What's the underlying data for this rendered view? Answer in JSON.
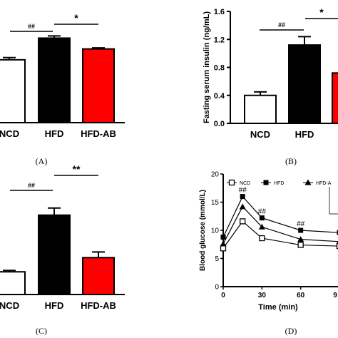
{
  "panels": {
    "A": "(A)",
    "B": "(B)",
    "C": "(C)",
    "D": "(D)"
  },
  "colors": {
    "ncd": "#ffffff",
    "hfd": "#000000",
    "hfd_ab": "#ff0000",
    "axis": "#000000"
  },
  "chart_data": [
    {
      "id": "A",
      "type": "bar",
      "categories": [
        "NCD",
        "HFD",
        "HFD-AB"
      ],
      "values": [
        0.58,
        0.78,
        0.68
      ],
      "errors": [
        0.02,
        0.02,
        0.01
      ],
      "ylim": [
        0,
        1.0
      ],
      "annotations": [
        {
          "text": "##",
          "between": [
            "NCD",
            "HFD"
          ]
        },
        {
          "text": "*",
          "between": [
            "HFD",
            "HFD-AB"
          ]
        }
      ]
    },
    {
      "id": "B",
      "type": "bar",
      "categories": [
        "NCD",
        "HFD",
        "HF"
      ],
      "values": [
        0.4,
        1.12,
        0.72
      ],
      "errors": [
        0.05,
        0.12,
        0.0
      ],
      "ylim": [
        0,
        1.6
      ],
      "yticks": [
        "0.0",
        "0.4",
        "0.8",
        "1.2",
        "1.6"
      ],
      "ylabel": "Fasting serum insulin (ng/mL)",
      "annotations": [
        {
          "text": "##",
          "between": [
            "NCD",
            "HFD"
          ]
        },
        {
          "text": "*",
          "between": [
            "HFD",
            "HF"
          ]
        }
      ]
    },
    {
      "id": "C",
      "type": "bar",
      "categories": [
        "NCD",
        "HFD",
        "HFD-AB"
      ],
      "values": [
        0.32,
        1.12,
        0.52
      ],
      "errors": [
        0.02,
        0.1,
        0.08
      ],
      "ylim": [
        0,
        1.6
      ],
      "annotations": [
        {
          "text": "##",
          "between": [
            "NCD",
            "HFD"
          ]
        },
        {
          "text": "**",
          "between": [
            "HFD",
            "HFD-AB"
          ]
        }
      ]
    },
    {
      "id": "D",
      "type": "line",
      "x": [
        0,
        15,
        30,
        60,
        90
      ],
      "xticks": [
        "0",
        "30",
        "60",
        "9"
      ],
      "yticks": [
        "0",
        "5",
        "10",
        "15",
        "20"
      ],
      "ylim": [
        0,
        20
      ],
      "xlim": [
        0,
        90
      ],
      "xlabel": "Time (min)",
      "ylabel": "Blood glucose (mmol/L)",
      "legend": "top",
      "series": [
        {
          "name": "NCD",
          "marker": "square-open",
          "values": [
            6.8,
            11.6,
            8.6,
            7.4,
            7.2
          ]
        },
        {
          "name": "HFD",
          "marker": "square-filled",
          "values": [
            8.8,
            16.0,
            12.2,
            10.0,
            9.6
          ]
        },
        {
          "name": "HFD-A",
          "marker": "triangle",
          "values": [
            7.6,
            14.2,
            10.6,
            8.4,
            8.0
          ]
        }
      ],
      "marks": [
        "##",
        "##",
        "##",
        "*"
      ]
    }
  ]
}
